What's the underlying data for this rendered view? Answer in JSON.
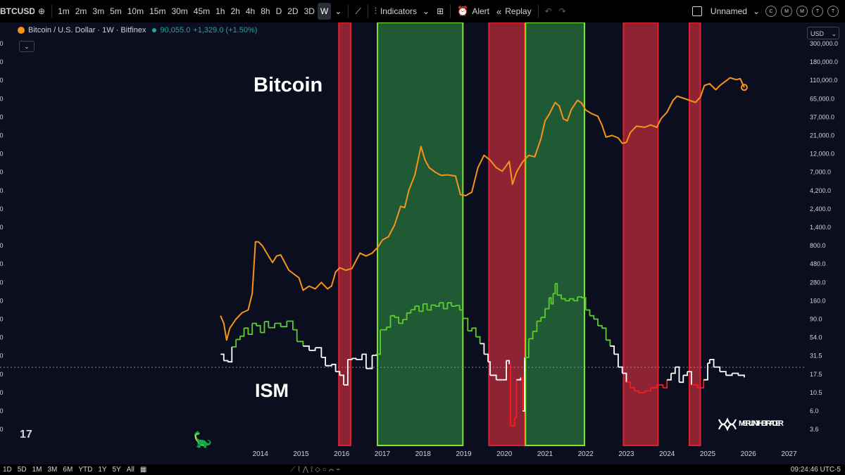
{
  "toolbar": {
    "symbol": "BTCUSD",
    "timeframes": [
      "1m",
      "2m",
      "3m",
      "5m",
      "10m",
      "15m",
      "30m",
      "45m",
      "1h",
      "2h",
      "4h",
      "8h",
      "D",
      "2D",
      "3D",
      "W"
    ],
    "active_timeframe": "W",
    "indicators_label": "Indicators",
    "alert_label": "Alert",
    "replay_label": "Replay",
    "layout_name": "Unnamed",
    "circle_buttons": [
      "C",
      "M",
      "M",
      "T",
      "T"
    ]
  },
  "legend": {
    "name": "Bitcoin / U.S. Dollar · 1W · Bitfinex",
    "price": "90,055.0",
    "change": "+1,329.0 (+1.50%)"
  },
  "currency": "USD",
  "watermark": "MERLIJN THE TRADER",
  "bottom": {
    "ranges": [
      "1D",
      "5D",
      "1M",
      "3M",
      "6M",
      "YTD",
      "1Y",
      "5Y",
      "All"
    ],
    "time": "09:24:46 UTC-5"
  },
  "chart_data": {
    "type": "line",
    "annotations": [
      "Bitcoin",
      "ISM"
    ],
    "y_scale": "log",
    "right_axis_ticks": [
      "300,000.0",
      "180,000.0",
      "110,000.0",
      "65,000.0",
      "37,000.0",
      "21,000.0",
      "12,000.0",
      "7,000.0",
      "4,200.0",
      "2,400.0",
      "1,400.0",
      "800.0",
      "480.0",
      "280.0",
      "160.0",
      "90.0",
      "54.0",
      "31.5",
      "17.5",
      "10.5",
      "6.0",
      "3.6"
    ],
    "x_ticks": [
      "2014",
      "2015",
      "2016",
      "2017",
      "2018",
      "2019",
      "2020",
      "2021",
      "2022",
      "2023",
      "2024",
      "2025",
      "2026",
      "2027"
    ],
    "red_bands": [
      [
        2015.93,
        2016.22
      ],
      [
        2019.62,
        2020.5
      ],
      [
        2022.93,
        2023.78
      ],
      [
        2024.55,
        2024.82
      ]
    ],
    "green_bands": [
      [
        2016.88,
        2018.98
      ],
      [
        2020.52,
        2021.97
      ]
    ],
    "colors": {
      "btc": "#f7931a",
      "ism_expansion": "#5ecc2e",
      "ism_neutral": "#ffffff",
      "ism_contraction": "#ff1a1a",
      "red_band": "#8e2433",
      "green_band": "#1f5a35"
    },
    "series": [
      {
        "name": "Bitcoin",
        "points": [
          [
            2013.02,
            100
          ],
          [
            2013.1,
            80
          ],
          [
            2013.17,
            50
          ],
          [
            2013.25,
            70
          ],
          [
            2013.4,
            90
          ],
          [
            2013.55,
            110
          ],
          [
            2013.7,
            120
          ],
          [
            2013.8,
            200
          ],
          [
            2013.88,
            900
          ],
          [
            2013.95,
            900
          ],
          [
            2014.05,
            800
          ],
          [
            2014.2,
            600
          ],
          [
            2014.3,
            500
          ],
          [
            2014.4,
            600
          ],
          [
            2014.5,
            620
          ],
          [
            2014.6,
            500
          ],
          [
            2014.7,
            400
          ],
          [
            2014.85,
            350
          ],
          [
            2014.95,
            320
          ],
          [
            2015.05,
            220
          ],
          [
            2015.2,
            250
          ],
          [
            2015.35,
            230
          ],
          [
            2015.5,
            280
          ],
          [
            2015.65,
            230
          ],
          [
            2015.75,
            250
          ],
          [
            2015.85,
            380
          ],
          [
            2015.95,
            430
          ],
          [
            2016.1,
            400
          ],
          [
            2016.25,
            420
          ],
          [
            2016.45,
            650
          ],
          [
            2016.6,
            600
          ],
          [
            2016.75,
            650
          ],
          [
            2016.9,
            780
          ],
          [
            2017.0,
            950
          ],
          [
            2017.15,
            1050
          ],
          [
            2017.3,
            1500
          ],
          [
            2017.45,
            2600
          ],
          [
            2017.55,
            2500
          ],
          [
            2017.65,
            4200
          ],
          [
            2017.8,
            6500
          ],
          [
            2017.95,
            15000
          ],
          [
            2018.05,
            10000
          ],
          [
            2018.15,
            8000
          ],
          [
            2018.3,
            7000
          ],
          [
            2018.45,
            6400
          ],
          [
            2018.6,
            6500
          ],
          [
            2018.8,
            6300
          ],
          [
            2018.92,
            3700
          ],
          [
            2019.05,
            3600
          ],
          [
            2019.2,
            4000
          ],
          [
            2019.35,
            8000
          ],
          [
            2019.5,
            11500
          ],
          [
            2019.65,
            10000
          ],
          [
            2019.8,
            8000
          ],
          [
            2019.95,
            7200
          ],
          [
            2020.05,
            8500
          ],
          [
            2020.12,
            9600
          ],
          [
            2020.2,
            5000
          ],
          [
            2020.3,
            7000
          ],
          [
            2020.45,
            9500
          ],
          [
            2020.6,
            11500
          ],
          [
            2020.75,
            11000
          ],
          [
            2020.9,
            19000
          ],
          [
            2021.0,
            33000
          ],
          [
            2021.1,
            40000
          ],
          [
            2021.25,
            58000
          ],
          [
            2021.35,
            52000
          ],
          [
            2021.45,
            35000
          ],
          [
            2021.55,
            33000
          ],
          [
            2021.65,
            47000
          ],
          [
            2021.8,
            62000
          ],
          [
            2021.9,
            57000
          ],
          [
            2022.0,
            46000
          ],
          [
            2022.15,
            41000
          ],
          [
            2022.3,
            38000
          ],
          [
            2022.4,
            29000
          ],
          [
            2022.5,
            20000
          ],
          [
            2022.65,
            21000
          ],
          [
            2022.8,
            19500
          ],
          [
            2022.9,
            16500
          ],
          [
            2023.0,
            17000
          ],
          [
            2023.1,
            23000
          ],
          [
            2023.25,
            28000
          ],
          [
            2023.45,
            27000
          ],
          [
            2023.6,
            29000
          ],
          [
            2023.75,
            27000
          ],
          [
            2023.85,
            35000
          ],
          [
            2024.0,
            43000
          ],
          [
            2024.15,
            62000
          ],
          [
            2024.25,
            70000
          ],
          [
            2024.4,
            66000
          ],
          [
            2024.55,
            62000
          ],
          [
            2024.7,
            58000
          ],
          [
            2024.82,
            68000
          ],
          [
            2024.92,
            95000
          ],
          [
            2025.05,
            100000
          ],
          [
            2025.2,
            84000
          ],
          [
            2025.3,
            95000
          ],
          [
            2025.45,
            108000
          ],
          [
            2025.55,
            118000
          ],
          [
            2025.7,
            112000
          ],
          [
            2025.8,
            115000
          ],
          [
            2025.9,
            90000
          ]
        ]
      },
      {
        "name": "ISM",
        "points": [
          [
            2013.02,
            33
          ],
          [
            2013.1,
            27
          ],
          [
            2013.2,
            26
          ],
          [
            2013.3,
            41
          ],
          [
            2013.4,
            51
          ],
          [
            2013.5,
            56
          ],
          [
            2013.6,
            70
          ],
          [
            2013.7,
            59
          ],
          [
            2013.8,
            80
          ],
          [
            2013.9,
            75
          ],
          [
            2014.0,
            62
          ],
          [
            2014.1,
            84
          ],
          [
            2014.2,
            71
          ],
          [
            2014.35,
            80
          ],
          [
            2014.5,
            73
          ],
          [
            2014.65,
            85
          ],
          [
            2014.8,
            67
          ],
          [
            2014.9,
            48
          ],
          [
            2015.05,
            42
          ],
          [
            2015.2,
            37
          ],
          [
            2015.35,
            40
          ],
          [
            2015.5,
            30
          ],
          [
            2015.6,
            23
          ],
          [
            2015.75,
            24
          ],
          [
            2015.85,
            19
          ],
          [
            2015.95,
            17
          ],
          [
            2016.05,
            13
          ],
          [
            2016.15,
            28
          ],
          [
            2016.25,
            29
          ],
          [
            2016.35,
            28
          ],
          [
            2016.5,
            33
          ],
          [
            2016.6,
            21
          ],
          [
            2016.75,
            32
          ],
          [
            2016.85,
            33
          ],
          [
            2016.95,
            67
          ],
          [
            2017.1,
            72
          ],
          [
            2017.2,
            100
          ],
          [
            2017.3,
            95
          ],
          [
            2017.4,
            80
          ],
          [
            2017.5,
            89
          ],
          [
            2017.6,
            109
          ],
          [
            2017.7,
            121
          ],
          [
            2017.8,
            135
          ],
          [
            2017.9,
            115
          ],
          [
            2018.0,
            145
          ],
          [
            2018.1,
            120
          ],
          [
            2018.2,
            140
          ],
          [
            2018.3,
            135
          ],
          [
            2018.4,
            150
          ],
          [
            2018.5,
            125
          ],
          [
            2018.6,
            150
          ],
          [
            2018.7,
            135
          ],
          [
            2018.8,
            138
          ],
          [
            2018.9,
            120
          ],
          [
            2018.98,
            92
          ],
          [
            2019.1,
            65
          ],
          [
            2019.2,
            70
          ],
          [
            2019.3,
            55
          ],
          [
            2019.4,
            45
          ],
          [
            2019.5,
            33
          ],
          [
            2019.6,
            26
          ],
          [
            2019.65,
            17
          ],
          [
            2019.8,
            15
          ],
          [
            2019.95,
            15
          ],
          [
            2020.05,
            27
          ],
          [
            2020.12,
            24
          ],
          [
            2020.15,
            4
          ],
          [
            2020.25,
            5
          ],
          [
            2020.3,
            15
          ],
          [
            2020.4,
            16
          ],
          [
            2020.45,
            6
          ],
          [
            2020.5,
            30
          ],
          [
            2020.6,
            52
          ],
          [
            2020.7,
            64
          ],
          [
            2020.8,
            85
          ],
          [
            2020.9,
            95
          ],
          [
            2021.0,
            125
          ],
          [
            2021.1,
            175
          ],
          [
            2021.15,
            145
          ],
          [
            2021.2,
            200
          ],
          [
            2021.25,
            270
          ],
          [
            2021.3,
            190
          ],
          [
            2021.4,
            170
          ],
          [
            2021.5,
            160
          ],
          [
            2021.6,
            170
          ],
          [
            2021.7,
            160
          ],
          [
            2021.8,
            180
          ],
          [
            2021.9,
            175
          ],
          [
            2022.0,
            120
          ],
          [
            2022.1,
            100
          ],
          [
            2022.2,
            90
          ],
          [
            2022.3,
            75
          ],
          [
            2022.4,
            70
          ],
          [
            2022.5,
            50
          ],
          [
            2022.6,
            42
          ],
          [
            2022.7,
            33
          ],
          [
            2022.8,
            22
          ],
          [
            2022.9,
            18
          ],
          [
            2023.0,
            14
          ],
          [
            2023.1,
            12
          ],
          [
            2023.2,
            11
          ],
          [
            2023.3,
            10.5
          ],
          [
            2023.45,
            11
          ],
          [
            2023.6,
            12
          ],
          [
            2023.75,
            13
          ],
          [
            2023.9,
            12
          ],
          [
            2024.0,
            15
          ],
          [
            2024.1,
            18
          ],
          [
            2024.2,
            22
          ],
          [
            2024.3,
            14
          ],
          [
            2024.4,
            17
          ],
          [
            2024.5,
            19
          ],
          [
            2024.6,
            13
          ],
          [
            2024.75,
            12
          ],
          [
            2024.9,
            15
          ],
          [
            2025.0,
            25
          ],
          [
            2025.05,
            28
          ],
          [
            2025.15,
            22
          ],
          [
            2025.3,
            19
          ],
          [
            2025.45,
            17
          ],
          [
            2025.6,
            18
          ],
          [
            2025.75,
            17
          ],
          [
            2025.9,
            16
          ]
        ]
      }
    ]
  }
}
